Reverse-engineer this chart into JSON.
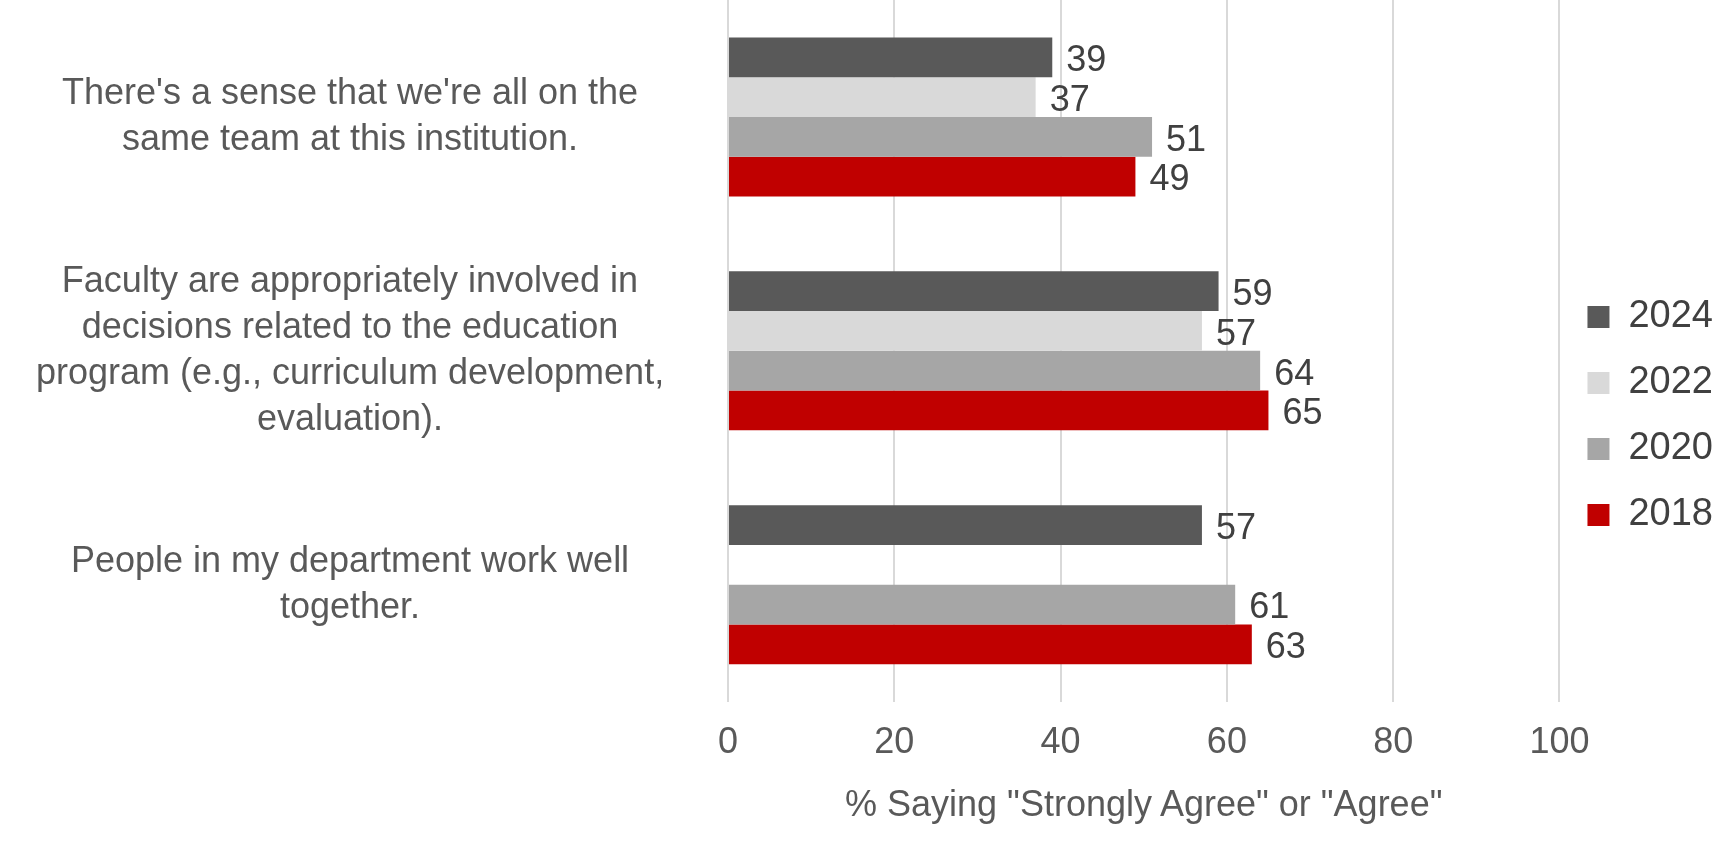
{
  "chart_data": {
    "type": "bar",
    "orientation": "horizontal",
    "xlabel": "% Saying \"Strongly Agree\" or \"Agree\"",
    "categories": [
      "There's a sense that we're all on the same team at this institution.",
      "Faculty are appropriately involved in decisions related to the education program (e.g., curriculum development, evaluation).",
      "People in my department work well together."
    ],
    "series": [
      {
        "name": "2024",
        "color": "#595959",
        "values": [
          39,
          59,
          57
        ]
      },
      {
        "name": "2022",
        "color": "#d9d9d9",
        "values": [
          37,
          57,
          null
        ]
      },
      {
        "name": "2020",
        "color": "#a6a6a6",
        "values": [
          51,
          64,
          61
        ]
      },
      {
        "name": "2018",
        "color": "#c00000",
        "values": [
          49,
          65,
          63
        ]
      }
    ],
    "xlim": [
      0,
      100
    ],
    "xticks": [
      0,
      20,
      40,
      60,
      80,
      100
    ],
    "grid": "x",
    "legend": "right",
    "data_labels": true
  }
}
